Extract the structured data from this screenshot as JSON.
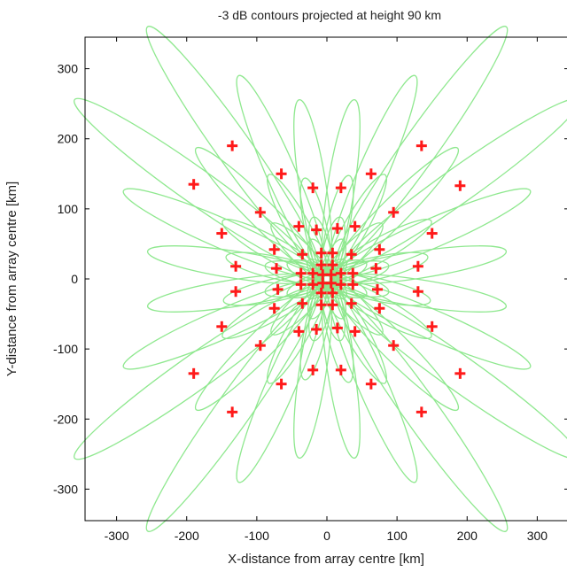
{
  "chart_data": {
    "type": "scatter",
    "title": "-3 dB contours projected at height 90 km",
    "xlabel": "X-distance from array centre [km]",
    "ylabel": "Y-distance from array centre [km]",
    "xlim": [
      -345,
      345
    ],
    "ylim": [
      -345,
      345
    ],
    "xticks": [
      -300,
      -200,
      -100,
      0,
      100,
      200,
      300
    ],
    "yticks": [
      300,
      200,
      100,
      0,
      -100,
      -200,
      -300
    ],
    "grid": false,
    "colors": {
      "contour": "#8fe88f",
      "marker": "#ff1a1a",
      "axis": "#000000"
    },
    "contour_centers": [
      [
        6,
        6
      ],
      [
        -6,
        6
      ],
      [
        6,
        -6
      ],
      [
        -6,
        -6
      ],
      [
        20,
        8
      ],
      [
        -20,
        8
      ],
      [
        20,
        -8
      ],
      [
        -20,
        -8
      ],
      [
        8,
        20
      ],
      [
        -8,
        20
      ],
      [
        8,
        -20
      ],
      [
        -8,
        -20
      ],
      [
        35,
        35
      ],
      [
        -35,
        35
      ],
      [
        35,
        -35
      ],
      [
        -35,
        -35
      ],
      [
        -8,
        37
      ],
      [
        8,
        37
      ],
      [
        -8,
        -37
      ],
      [
        8,
        -37
      ],
      [
        37,
        8
      ],
      [
        37,
        -8
      ],
      [
        -37,
        8
      ],
      [
        -37,
        -8
      ],
      [
        -15,
        68
      ],
      [
        15,
        70
      ],
      [
        -15,
        -68
      ],
      [
        15,
        -70
      ],
      [
        68,
        15
      ],
      [
        70,
        -15
      ],
      [
        -68,
        15
      ],
      [
        -70,
        -15
      ],
      [
        40,
        72
      ],
      [
        -40,
        72
      ],
      [
        40,
        -72
      ],
      [
        -40,
        -72
      ],
      [
        72,
        40
      ],
      [
        72,
        -40
      ],
      [
        -72,
        40
      ],
      [
        -72,
        -40
      ],
      [
        -20,
        130
      ],
      [
        20,
        130
      ],
      [
        -20,
        -130
      ],
      [
        20,
        -130
      ],
      [
        130,
        20
      ],
      [
        130,
        -20
      ],
      [
        -130,
        20
      ],
      [
        -130,
        -20
      ],
      [
        65,
        150
      ],
      [
        -65,
        150
      ],
      [
        65,
        -150
      ],
      [
        -65,
        -150
      ],
      [
        150,
        65
      ],
      [
        150,
        -65
      ],
      [
        -150,
        65
      ],
      [
        -150,
        -65
      ],
      [
        95,
        95
      ],
      [
        -95,
        95
      ],
      [
        95,
        -95
      ],
      [
        -95,
        -95
      ],
      [
        135,
        190
      ],
      [
        -135,
        190
      ],
      [
        135,
        -190
      ],
      [
        -135,
        -190
      ],
      [
        190,
        135
      ],
      [
        -190,
        135
      ],
      [
        190,
        -135
      ],
      [
        -190,
        -135
      ]
    ],
    "points": [
      [
        -6,
        6
      ],
      [
        6,
        6
      ],
      [
        -6,
        -6
      ],
      [
        6,
        -6
      ],
      [
        -20,
        8
      ],
      [
        20,
        8
      ],
      [
        -20,
        -8
      ],
      [
        20,
        -8
      ],
      [
        -8,
        20
      ],
      [
        8,
        20
      ],
      [
        -8,
        -20
      ],
      [
        8,
        -20
      ],
      [
        -35,
        35
      ],
      [
        35,
        35
      ],
      [
        -35,
        -35
      ],
      [
        35,
        -35
      ],
      [
        -8,
        37
      ],
      [
        8,
        37
      ],
      [
        -8,
        -37
      ],
      [
        8,
        -37
      ],
      [
        37,
        8
      ],
      [
        37,
        -8
      ],
      [
        -37,
        8
      ],
      [
        -37,
        -8
      ],
      [
        -15,
        70
      ],
      [
        15,
        72
      ],
      [
        -15,
        -72
      ],
      [
        15,
        -70
      ],
      [
        70,
        15
      ],
      [
        72,
        -15
      ],
      [
        -72,
        15
      ],
      [
        -70,
        -15
      ],
      [
        -40,
        75
      ],
      [
        40,
        75
      ],
      [
        -40,
        -75
      ],
      [
        40,
        -75
      ],
      [
        75,
        42
      ],
      [
        75,
        -42
      ],
      [
        -75,
        42
      ],
      [
        -75,
        -42
      ],
      [
        -20,
        130
      ],
      [
        20,
        130
      ],
      [
        -20,
        -130
      ],
      [
        20,
        -130
      ],
      [
        130,
        18
      ],
      [
        130,
        -18
      ],
      [
        -130,
        18
      ],
      [
        -130,
        -18
      ],
      [
        -65,
        150
      ],
      [
        63,
        150
      ],
      [
        -65,
        -150
      ],
      [
        63,
        -150
      ],
      [
        150,
        65
      ],
      [
        150,
        -68
      ],
      [
        -150,
        65
      ],
      [
        -150,
        -68
      ],
      [
        -95,
        95
      ],
      [
        95,
        95
      ],
      [
        -95,
        -95
      ],
      [
        95,
        -95
      ],
      [
        -135,
        190
      ],
      [
        135,
        190
      ],
      [
        -135,
        -190
      ],
      [
        135,
        -190
      ],
      [
        -190,
        135
      ],
      [
        190,
        133
      ],
      [
        -190,
        -135
      ],
      [
        190,
        -135
      ]
    ]
  }
}
